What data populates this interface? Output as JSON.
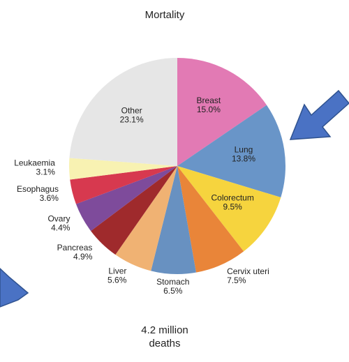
{
  "chart_data": {
    "type": "pie",
    "title": "Mortality",
    "categories": [
      "Breast",
      "Lung",
      "Colorectum",
      "Cervix uteri",
      "Stomach",
      "Liver",
      "Pancreas",
      "Ovary",
      "Esophagus",
      "Leukaemia",
      "Other"
    ],
    "values": [
      15.0,
      13.8,
      9.5,
      7.5,
      6.5,
      5.6,
      4.9,
      4.4,
      3.6,
      3.1,
      23.1
    ],
    "value_labels": [
      "15.0%",
      "13.8%",
      "9.5%",
      "7.5%",
      "6.5%",
      "5.6%",
      "4.9%",
      "4.4%",
      "3.6%",
      "3.1%",
      "23.1%"
    ],
    "colors": [
      "#e27ab4",
      "#6995c8",
      "#f6d43e",
      "#e98539",
      "#6891c1",
      "#f0b273",
      "#9f2a2c",
      "#7e4b9b",
      "#d7394f",
      "#f8f2b2",
      "#e6e6e6"
    ],
    "annotations": [
      "4.2 million",
      "deaths"
    ]
  }
}
